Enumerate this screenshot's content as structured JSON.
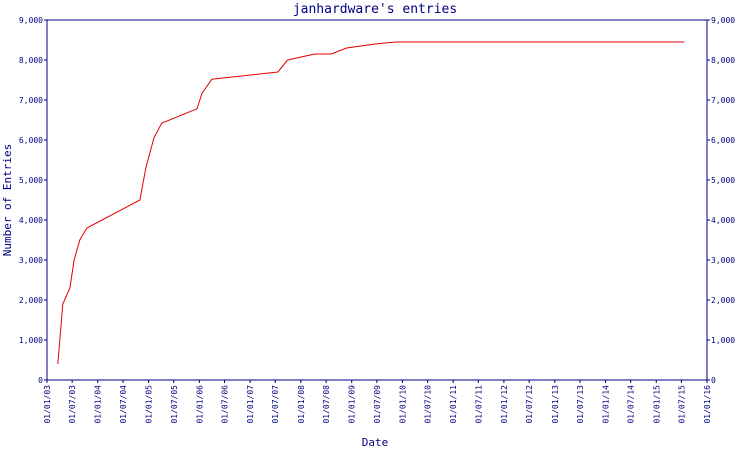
{
  "chart_data": {
    "type": "line",
    "title": "janhardware's entries",
    "xlabel": "Date",
    "ylabel": "Number of Entries",
    "color": "#e00000",
    "axis_color": "#000080",
    "x": [
      "2003-03-20",
      "2003-04-25",
      "2003-06-15",
      "2003-07-15",
      "2003-08-25",
      "2003-10-15",
      "2004-10-30",
      "2004-12-12",
      "2005-02-08",
      "2005-04-05",
      "2005-12-15",
      "2006-01-20",
      "2006-04-01",
      "2007-07-20",
      "2007-09-28",
      "2008-04-10",
      "2008-08-08",
      "2008-11-25",
      "2009-06-18",
      "2009-11-14",
      "2015-07-22"
    ],
    "values": [
      400,
      1900,
      2300,
      3000,
      3500,
      3800,
      4500,
      5300,
      6050,
      6420,
      6780,
      7170,
      7520,
      7700,
      8000,
      8150,
      8150,
      8300,
      8400,
      8450,
      8450
    ],
    "xlim": [
      "2003-01-01",
      "2016-01-01"
    ],
    "xticks": [
      {
        "value": "2003-01-01",
        "label": "01/01/03"
      },
      {
        "value": "2003-07-01",
        "label": "01/07/03"
      },
      {
        "value": "2004-01-01",
        "label": "01/01/04"
      },
      {
        "value": "2004-07-01",
        "label": "01/07/04"
      },
      {
        "value": "2005-01-01",
        "label": "01/01/05"
      },
      {
        "value": "2005-07-01",
        "label": "01/07/05"
      },
      {
        "value": "2006-01-01",
        "label": "01/01/06"
      },
      {
        "value": "2006-07-01",
        "label": "01/07/06"
      },
      {
        "value": "2007-01-01",
        "label": "01/01/07"
      },
      {
        "value": "2007-07-01",
        "label": "01/07/07"
      },
      {
        "value": "2008-01-01",
        "label": "01/01/08"
      },
      {
        "value": "2008-07-01",
        "label": "01/07/08"
      },
      {
        "value": "2009-01-01",
        "label": "01/01/09"
      },
      {
        "value": "2009-07-01",
        "label": "01/07/09"
      },
      {
        "value": "2010-01-01",
        "label": "01/01/10"
      },
      {
        "value": "2010-07-01",
        "label": "01/07/10"
      },
      {
        "value": "2011-01-01",
        "label": "01/01/11"
      },
      {
        "value": "2011-07-01",
        "label": "01/07/11"
      },
      {
        "value": "2012-01-01",
        "label": "01/01/12"
      },
      {
        "value": "2012-07-01",
        "label": "01/07/12"
      },
      {
        "value": "2013-01-01",
        "label": "01/01/13"
      },
      {
        "value": "2013-07-01",
        "label": "01/07/13"
      },
      {
        "value": "2014-01-01",
        "label": "01/01/14"
      },
      {
        "value": "2014-07-01",
        "label": "01/07/14"
      },
      {
        "value": "2015-01-01",
        "label": "01/01/15"
      },
      {
        "value": "2015-07-01",
        "label": "01/07/15"
      },
      {
        "value": "2016-01-01",
        "label": "01/01/16"
      }
    ],
    "ylim": [
      0,
      9000
    ],
    "yticks": [
      0,
      {
        "value": 1000,
        "label": "1,000"
      },
      {
        "value": 2000,
        "label": "2,000"
      },
      {
        "value": 3000,
        "label": "3,000"
      },
      {
        "value": 4000,
        "label": "4,000"
      },
      {
        "value": 5000,
        "label": "5,000"
      },
      {
        "value": 6000,
        "label": "6,000"
      },
      {
        "value": 7000,
        "label": "7,000"
      },
      {
        "value": 8000,
        "label": "8,000"
      },
      {
        "value": 9000,
        "label": "9,000"
      }
    ]
  }
}
